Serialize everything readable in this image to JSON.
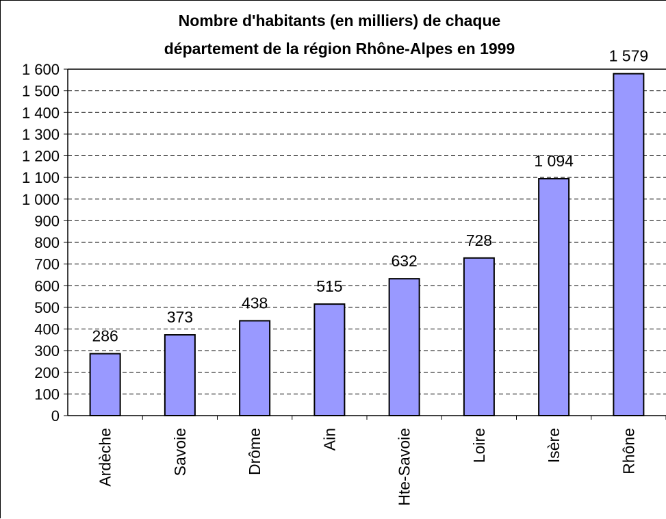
{
  "chart_data": {
    "type": "bar",
    "title_lines": [
      "Nombre d'habitants (en milliers) de chaque",
      "département de la région Rhône-Alpes en 1999"
    ],
    "categories": [
      "Ardèche",
      "Savoie",
      "Drôme",
      "Ain",
      "Hte-Savoie",
      "Loire",
      "Isère",
      "Rhône"
    ],
    "values": [
      286,
      373,
      438,
      515,
      632,
      728,
      1094,
      1579
    ],
    "data_labels": [
      "286",
      "373",
      "438",
      "515",
      "632",
      "728",
      "1 094",
      "1 579"
    ],
    "yticks": [
      0,
      100,
      200,
      300,
      400,
      500,
      600,
      700,
      800,
      900,
      1000,
      1100,
      1200,
      1300,
      1400,
      1500,
      1600
    ],
    "ytick_labels": [
      "0",
      "100",
      "200",
      "300",
      "400",
      "500",
      "600",
      "700",
      "800",
      "900",
      "1 000",
      "1 100",
      "1 200",
      "1 300",
      "1 400",
      "1 500",
      "1 600"
    ],
    "ylim": [
      0,
      1600
    ],
    "xlabel": "",
    "ylabel": "",
    "grid": true,
    "legend": false,
    "bar_color": "#9999ff",
    "bar_outline": "#000000"
  }
}
